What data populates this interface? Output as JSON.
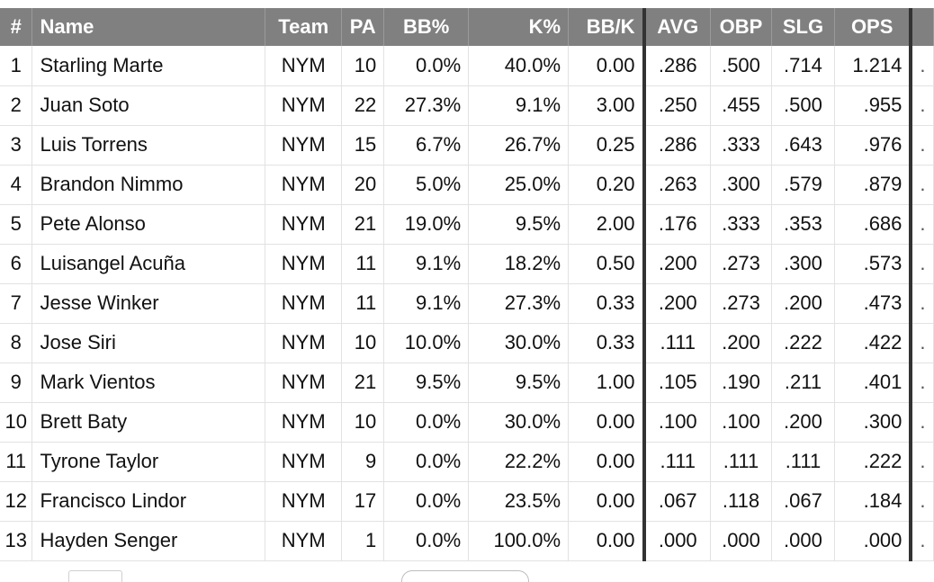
{
  "table": {
    "headers": {
      "rank": "#",
      "name": "Name",
      "team": "Team",
      "pa": "PA",
      "bb_pct": "BB%",
      "k_pct": "K%",
      "bb_k": "BB/K",
      "avg": "AVG",
      "obp": "OBP",
      "slg": "SLG",
      "ops": "OPS"
    },
    "rows": [
      {
        "rank": "1",
        "name": "Starling Marte",
        "team": "NYM",
        "pa": "10",
        "bb_pct": "0.0%",
        "k_pct": "40.0%",
        "bb_k": "0.00",
        "avg": ".286",
        "obp": ".500",
        "slg": ".714",
        "ops": "1.214"
      },
      {
        "rank": "2",
        "name": "Juan Soto",
        "team": "NYM",
        "pa": "22",
        "bb_pct": "27.3%",
        "k_pct": "9.1%",
        "bb_k": "3.00",
        "avg": ".250",
        "obp": ".455",
        "slg": ".500",
        "ops": ".955"
      },
      {
        "rank": "3",
        "name": "Luis Torrens",
        "team": "NYM",
        "pa": "15",
        "bb_pct": "6.7%",
        "k_pct": "26.7%",
        "bb_k": "0.25",
        "avg": ".286",
        "obp": ".333",
        "slg": ".643",
        "ops": ".976"
      },
      {
        "rank": "4",
        "name": "Brandon Nimmo",
        "team": "NYM",
        "pa": "20",
        "bb_pct": "5.0%",
        "k_pct": "25.0%",
        "bb_k": "0.20",
        "avg": ".263",
        "obp": ".300",
        "slg": ".579",
        "ops": ".879"
      },
      {
        "rank": "5",
        "name": "Pete Alonso",
        "team": "NYM",
        "pa": "21",
        "bb_pct": "19.0%",
        "k_pct": "9.5%",
        "bb_k": "2.00",
        "avg": ".176",
        "obp": ".333",
        "slg": ".353",
        "ops": ".686"
      },
      {
        "rank": "6",
        "name": "Luisangel Acuña",
        "team": "NYM",
        "pa": "11",
        "bb_pct": "9.1%",
        "k_pct": "18.2%",
        "bb_k": "0.50",
        "avg": ".200",
        "obp": ".273",
        "slg": ".300",
        "ops": ".573"
      },
      {
        "rank": "7",
        "name": "Jesse Winker",
        "team": "NYM",
        "pa": "11",
        "bb_pct": "9.1%",
        "k_pct": "27.3%",
        "bb_k": "0.33",
        "avg": ".200",
        "obp": ".273",
        "slg": ".200",
        "ops": ".473"
      },
      {
        "rank": "8",
        "name": "Jose Siri",
        "team": "NYM",
        "pa": "10",
        "bb_pct": "10.0%",
        "k_pct": "30.0%",
        "bb_k": "0.33",
        "avg": ".111",
        "obp": ".200",
        "slg": ".222",
        "ops": ".422"
      },
      {
        "rank": "9",
        "name": "Mark Vientos",
        "team": "NYM",
        "pa": "21",
        "bb_pct": "9.5%",
        "k_pct": "9.5%",
        "bb_k": "1.00",
        "avg": ".105",
        "obp": ".190",
        "slg": ".211",
        "ops": ".401"
      },
      {
        "rank": "10",
        "name": "Brett Baty",
        "team": "NYM",
        "pa": "10",
        "bb_pct": "0.0%",
        "k_pct": "30.0%",
        "bb_k": "0.00",
        "avg": ".100",
        "obp": ".100",
        "slg": ".200",
        "ops": ".300"
      },
      {
        "rank": "11",
        "name": "Tyrone Taylor",
        "team": "NYM",
        "pa": "9",
        "bb_pct": "0.0%",
        "k_pct": "22.2%",
        "bb_k": "0.00",
        "avg": ".111",
        "obp": ".111",
        "slg": ".111",
        "ops": ".222"
      },
      {
        "rank": "12",
        "name": "Francisco Lindor",
        "team": "NYM",
        "pa": "17",
        "bb_pct": "0.0%",
        "k_pct": "23.5%",
        "bb_k": "0.00",
        "avg": ".067",
        "obp": ".118",
        "slg": ".067",
        "ops": ".184"
      },
      {
        "rank": "13",
        "name": "Hayden Senger",
        "team": "NYM",
        "pa": "1",
        "bb_pct": "0.0%",
        "k_pct": "100.0%",
        "bb_k": "0.00",
        "avg": ".000",
        "obp": ".000",
        "slg": ".000",
        "ops": ".000"
      }
    ],
    "overflow_marker": "."
  },
  "colors": {
    "header_bg": "#808080",
    "header_text": "#ffffff",
    "column_separator": "#333333"
  }
}
